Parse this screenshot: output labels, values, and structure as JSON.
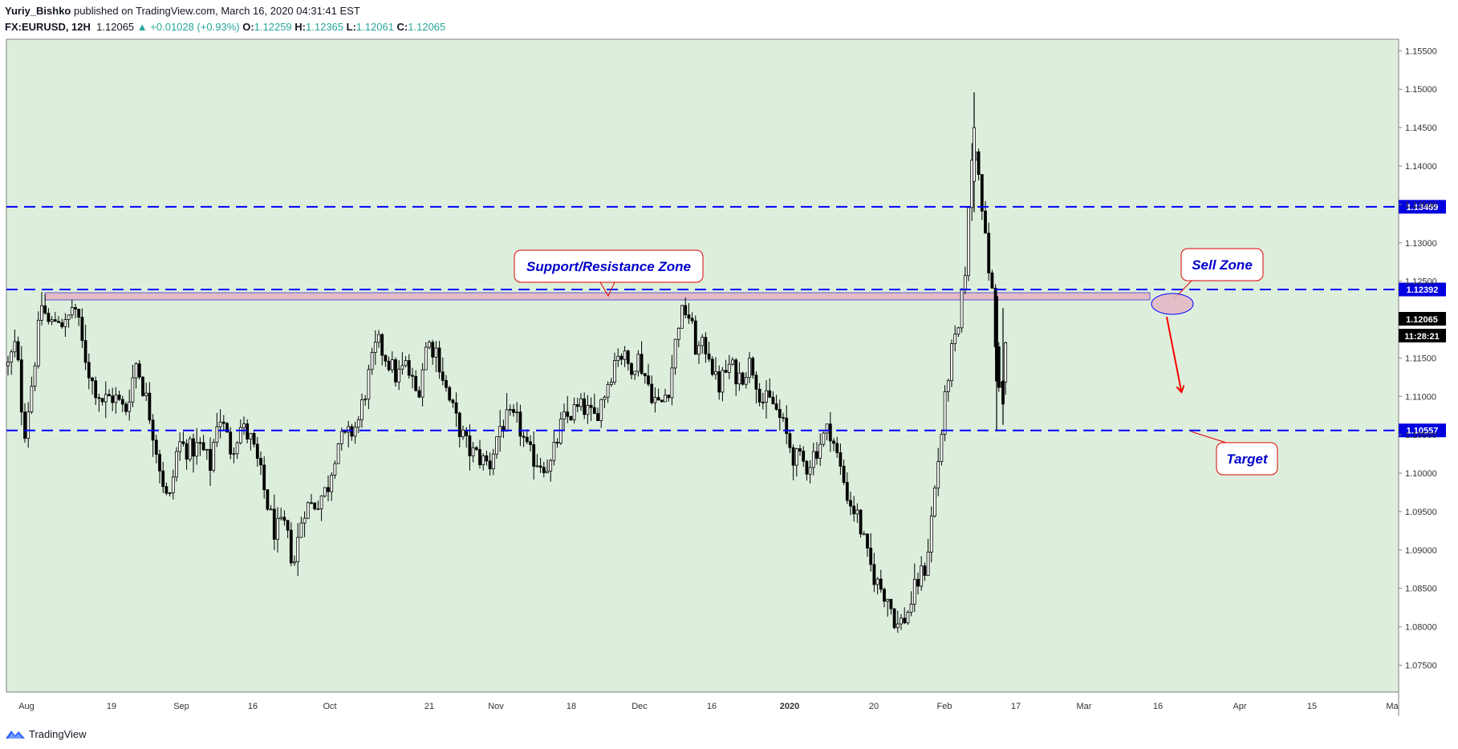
{
  "header": {
    "author": "Yuriy_Bishko",
    "published_text": "published on TradingView.com, March 16, 2020 04:31:41 EST",
    "symbol": "FX:EURUSD, 12H",
    "last": "1.12065",
    "change": "+0.01028 (+0.93%)",
    "open_label": "O:",
    "open": "1.12259",
    "high_label": "H:",
    "high": "1.12365",
    "low_label": "L:",
    "low": "1.12061",
    "close_label": "C:",
    "close": "1.12065"
  },
  "footer": {
    "brand": "TradingView"
  },
  "colors": {
    "background": "#ddefdc",
    "level_line": "#0000ff",
    "candle": "#000000",
    "zone_fill": "#e3b6c4",
    "callout_border": "#e00000",
    "callout_text": "#0000cc",
    "arrow": "#ff0000"
  },
  "chart_data": {
    "type": "candlestick",
    "timeframe": "12H",
    "ylim": [
      1.0715,
      1.1565
    ],
    "yticks": [
      "1.07500",
      "1.08000",
      "1.08500",
      "1.09000",
      "1.09500",
      "1.10000",
      "1.10500",
      "1.11000",
      "1.11500",
      "1.12000",
      "1.12500",
      "1.13000",
      "1.13500",
      "1.14000",
      "1.14500",
      "1.15000",
      "1.15500"
    ],
    "xticks": [
      "Aug",
      "19",
      "Sep",
      "16",
      "Oct",
      "21",
      "Nov",
      "18",
      "Dec",
      "16",
      "2020",
      "20",
      "Feb",
      "17",
      "Mar",
      "16",
      "Apr",
      "15",
      "Ma"
    ],
    "price_path": [
      [
        0,
        1.114
      ],
      [
        10,
        1.117
      ],
      [
        20,
        1.105
      ],
      [
        30,
        1.112
      ],
      [
        42,
        1.122
      ],
      [
        52,
        1.119
      ],
      [
        62,
        1.1205
      ],
      [
        72,
        1.119
      ],
      [
        82,
        1.1225
      ],
      [
        92,
        1.117
      ],
      [
        104,
        1.112
      ],
      [
        118,
        1.1095
      ],
      [
        132,
        1.11
      ],
      [
        146,
        1.108
      ],
      [
        160,
        1.1145
      ],
      [
        175,
        1.1085
      ],
      [
        190,
        1.1005
      ],
      [
        200,
        1.0955
      ],
      [
        212,
        1.104
      ],
      [
        225,
        1.103
      ],
      [
        240,
        1.1035
      ],
      [
        252,
        1.101
      ],
      [
        262,
        1.108
      ],
      [
        278,
        1.103
      ],
      [
        290,
        1.106
      ],
      [
        302,
        1.1045
      ],
      [
        312,
        1.101
      ],
      [
        322,
        1.0965
      ],
      [
        332,
        1.0925
      ],
      [
        345,
        1.093
      ],
      [
        356,
        1.088
      ],
      [
        368,
        1.0955
      ],
      [
        382,
        1.096
      ],
      [
        398,
        1.098
      ],
      [
        410,
        1.104
      ],
      [
        422,
        1.1045
      ],
      [
        436,
        1.1065
      ],
      [
        448,
        1.112
      ],
      [
        460,
        1.117
      ],
      [
        472,
        1.115
      ],
      [
        484,
        1.1125
      ],
      [
        496,
        1.114
      ],
      [
        510,
        1.11
      ],
      [
        522,
        1.117
      ],
      [
        534,
        1.116
      ],
      [
        548,
        1.11
      ],
      [
        560,
        1.1065
      ],
      [
        574,
        1.103
      ],
      [
        588,
        1.102
      ],
      [
        600,
        1.101
      ],
      [
        612,
        1.106
      ],
      [
        624,
        1.107
      ],
      [
        636,
        1.1065
      ],
      [
        648,
        1.1025
      ],
      [
        662,
        1.1015
      ],
      [
        676,
        1.101
      ],
      [
        690,
        1.1065
      ],
      [
        704,
        1.108
      ],
      [
        718,
        1.1085
      ],
      [
        730,
        1.107
      ],
      [
        745,
        1.111
      ],
      [
        760,
        1.116
      ],
      [
        774,
        1.114
      ],
      [
        786,
        1.115
      ],
      [
        800,
        1.111
      ],
      [
        812,
        1.1085
      ],
      [
        824,
        1.1115
      ],
      [
        836,
        1.12
      ],
      [
        846,
        1.1215
      ],
      [
        858,
        1.116
      ],
      [
        872,
        1.1165
      ],
      [
        884,
        1.111
      ],
      [
        898,
        1.114
      ],
      [
        912,
        1.1125
      ],
      [
        926,
        1.1145
      ],
      [
        940,
        1.1095
      ],
      [
        954,
        1.109
      ],
      [
        966,
        1.106
      ],
      [
        980,
        1.102
      ],
      [
        996,
        1.101
      ],
      [
        1012,
        1.104
      ],
      [
        1024,
        1.106
      ],
      [
        1036,
        1.101
      ],
      [
        1048,
        1.0965
      ],
      [
        1060,
        1.094
      ],
      [
        1072,
        1.0885
      ],
      [
        1084,
        1.0855
      ],
      [
        1096,
        1.084
      ],
      [
        1108,
        1.08
      ],
      [
        1120,
        1.0815
      ],
      [
        1132,
        1.0855
      ],
      [
        1144,
        1.088
      ],
      [
        1154,
        1.097
      ],
      [
        1164,
        1.106
      ],
      [
        1174,
        1.115
      ],
      [
        1184,
        1.118
      ],
      [
        1194,
        1.128
      ],
      [
        1202,
        1.143
      ],
      [
        1210,
        1.14
      ],
      [
        1218,
        1.13
      ],
      [
        1226,
        1.124
      ],
      [
        1232,
        1.114
      ],
      [
        1238,
        1.11
      ],
      [
        1246,
        1.1206
      ]
    ],
    "levels": [
      {
        "price": 1.13469,
        "label": "1.13469"
      },
      {
        "price": 1.12392,
        "label": "1.12392"
      },
      {
        "price": 1.10557,
        "label": "1.10557"
      }
    ],
    "current_price": {
      "price": 1.12065,
      "label": "1.12065",
      "countdown": "11:28:21"
    },
    "annotations": [
      {
        "id": "sr",
        "text": "Support/Resistance Zone"
      },
      {
        "id": "sell",
        "text": "Sell Zone"
      },
      {
        "id": "target",
        "text": "Target"
      }
    ]
  }
}
